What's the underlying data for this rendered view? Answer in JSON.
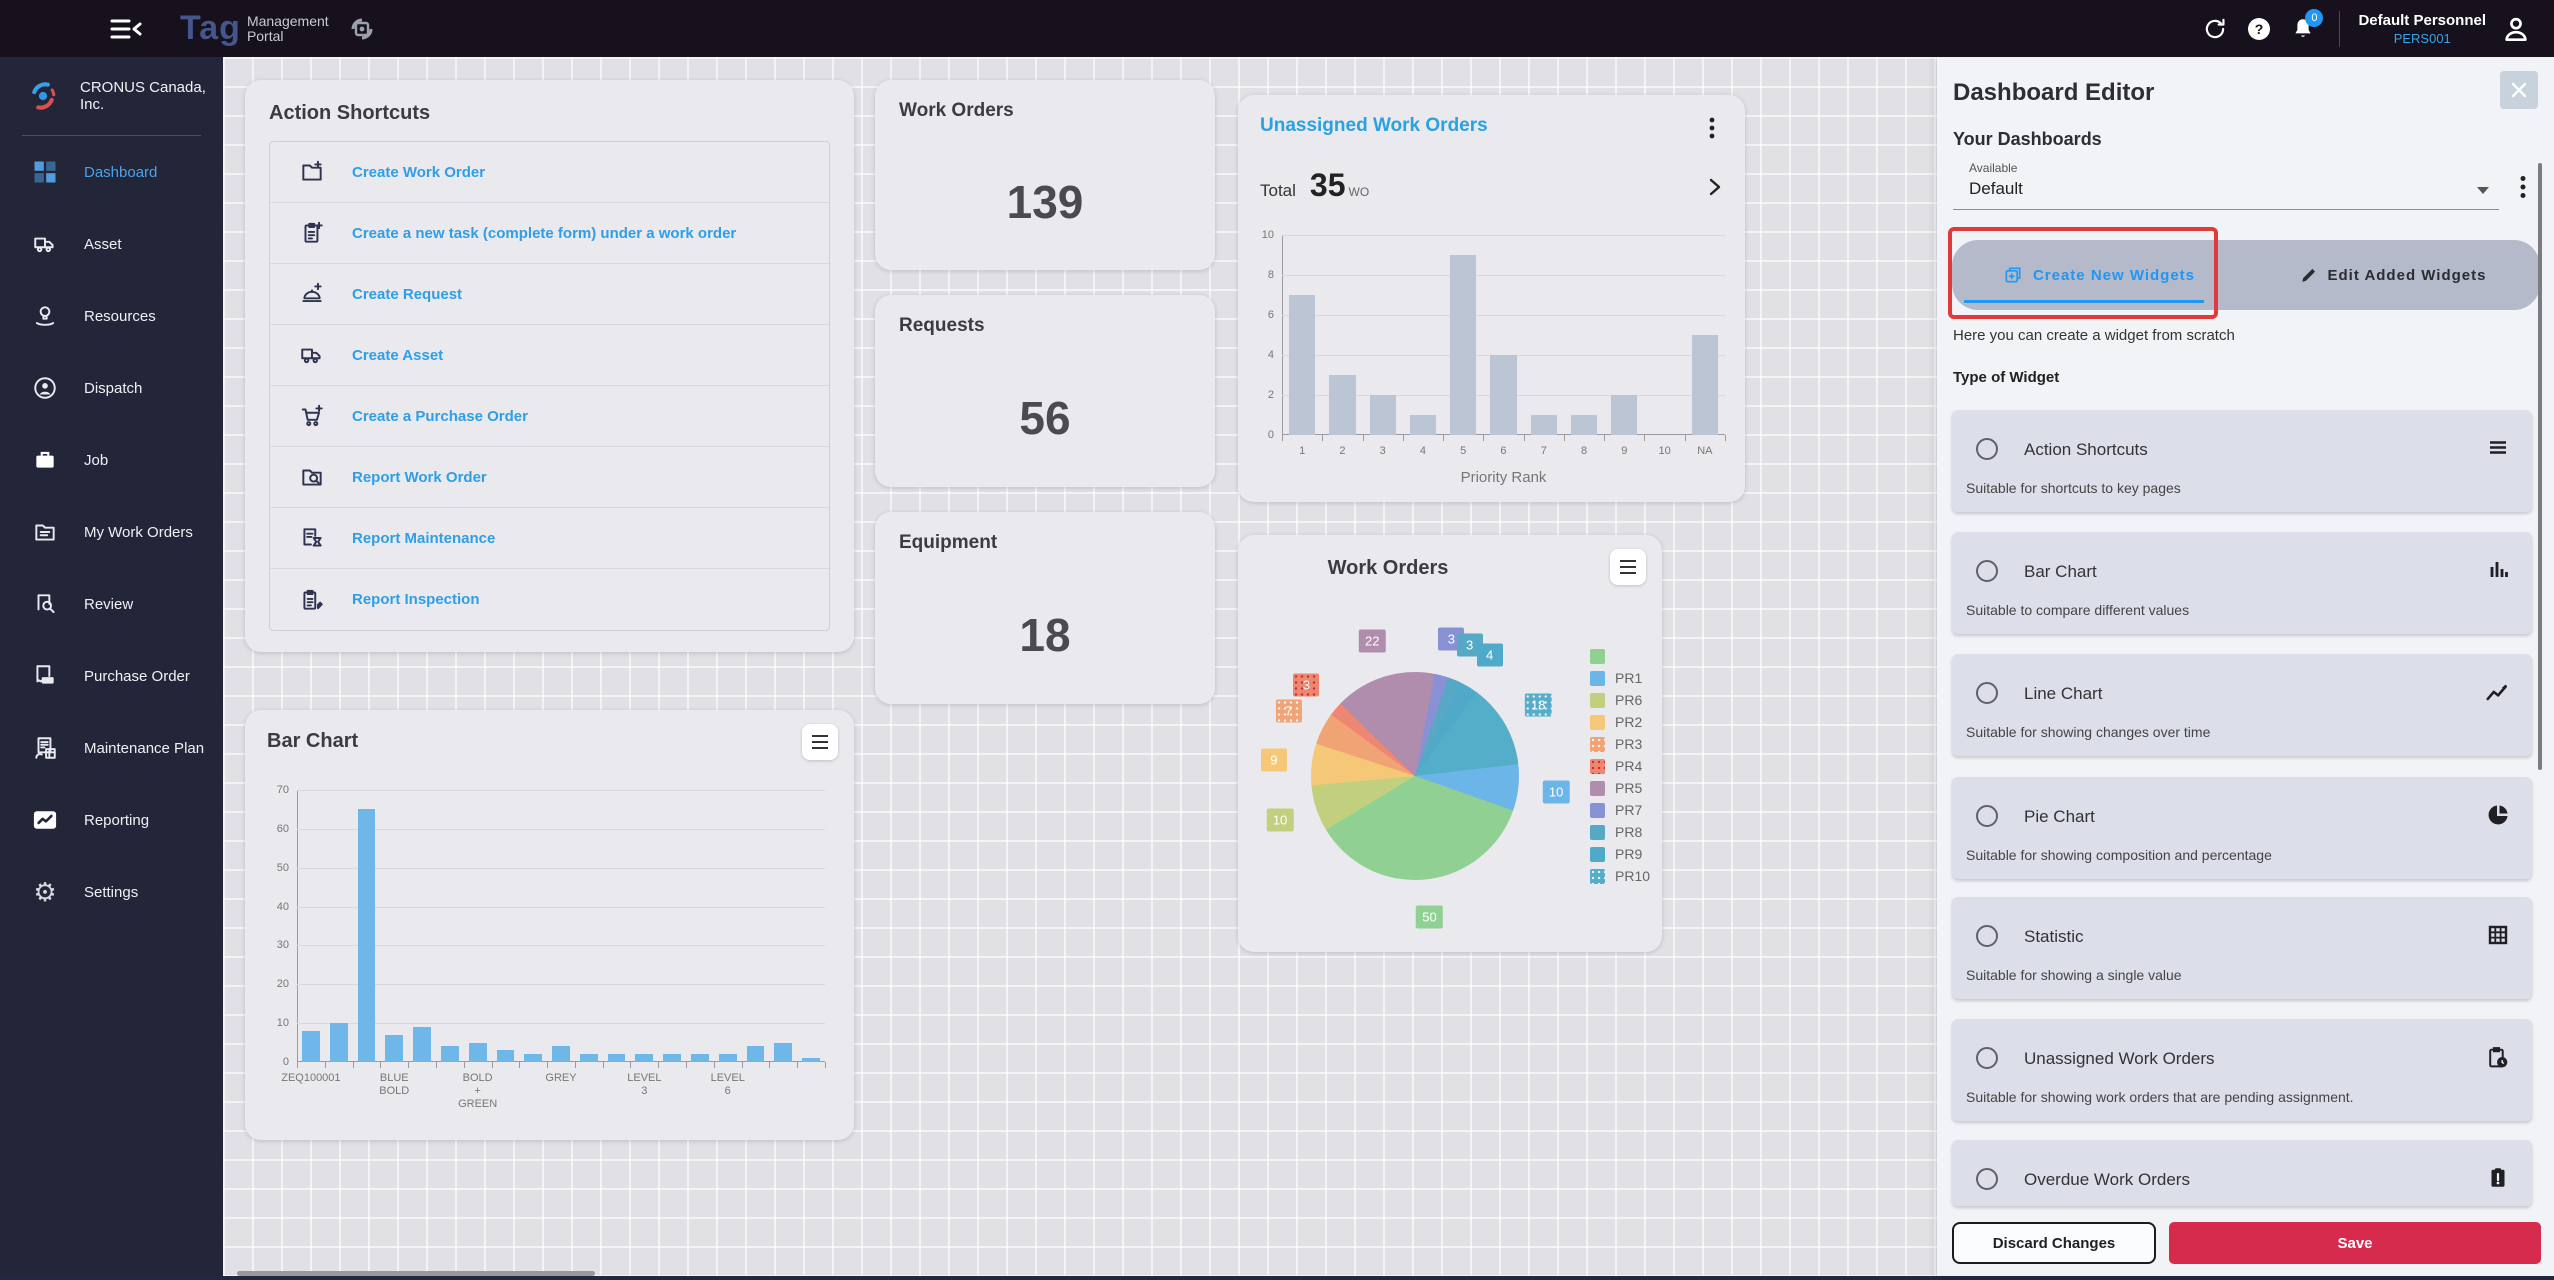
{
  "topbar": {
    "logo_primary": "Tag",
    "logo_secondary_line1": "Management",
    "logo_secondary_line2": "Portal",
    "notification_badge": "0",
    "user_name": "Default Personnel",
    "user_id": "PERS001"
  },
  "sidebar": {
    "company": "CRONUS Canada, Inc.",
    "items": [
      {
        "label": "Dashboard",
        "icon": "dashboard",
        "active": true
      },
      {
        "label": "Asset",
        "icon": "asset",
        "active": false
      },
      {
        "label": "Resources",
        "icon": "resources",
        "active": false
      },
      {
        "label": "Dispatch",
        "icon": "dispatch",
        "active": false
      },
      {
        "label": "Job",
        "icon": "job",
        "active": false
      },
      {
        "label": "My Work Orders",
        "icon": "my-work-orders",
        "active": false
      },
      {
        "label": "Review",
        "icon": "review",
        "active": false
      },
      {
        "label": "Purchase Order",
        "icon": "purchase-order",
        "active": false
      },
      {
        "label": "Maintenance Plan",
        "icon": "maintenance-plan",
        "active": false
      },
      {
        "label": "Reporting",
        "icon": "reporting",
        "active": false
      },
      {
        "label": "Settings",
        "icon": "settings",
        "active": false
      }
    ]
  },
  "action_shortcuts": {
    "title": "Action Shortcuts",
    "items": [
      {
        "label": "Create Work Order",
        "icon": "folder-plus"
      },
      {
        "label": "Create a new task (complete form) under a work order",
        "icon": "clipboard-plus"
      },
      {
        "label": "Create Request",
        "icon": "cloche-plus"
      },
      {
        "label": "Create Asset",
        "icon": "truck"
      },
      {
        "label": "Create a Purchase Order",
        "icon": "cart-plus"
      },
      {
        "label": "Report Work Order",
        "icon": "folder-search"
      },
      {
        "label": "Report Maintenance",
        "icon": "doc-hourglass"
      },
      {
        "label": "Report Inspection",
        "icon": "clipboard-pencil"
      }
    ]
  },
  "stats": [
    {
      "title": "Work Orders",
      "value": "139"
    },
    {
      "title": "Requests",
      "value": "56"
    },
    {
      "title": "Equipment",
      "value": "18"
    }
  ],
  "unassigned_widget": {
    "title": "Unassigned Work Orders",
    "total_label": "Total",
    "total_value": "35",
    "total_unit": "WO"
  },
  "pie_widget": {
    "title": "Work Orders"
  },
  "bar_widget": {
    "title": "Bar Chart"
  },
  "editor": {
    "title": "Dashboard Editor",
    "section_title": "Your Dashboards",
    "select_label": "Available",
    "select_value": "Default",
    "tabs": [
      {
        "label": "Create New Widgets",
        "icon": "widget-plus",
        "active": true
      },
      {
        "label": "Edit Added Widgets",
        "icon": "pencil",
        "active": false
      }
    ],
    "tab_hint": "Here you can create a widget from scratch",
    "list_title": "Type of Widget",
    "widget_types": [
      {
        "label": "Action Shortcuts",
        "description": "Suitable for shortcuts to key pages",
        "icon": "list"
      },
      {
        "label": "Bar Chart",
        "description": "Suitable to compare different values",
        "icon": "bar-chart"
      },
      {
        "label": "Line Chart",
        "description": "Suitable for showing changes over time",
        "icon": "line-chart"
      },
      {
        "label": "Pie Chart",
        "description": "Suitable for showing composition and percentage",
        "icon": "pie-chart"
      },
      {
        "label": "Statistic",
        "description": "Suitable for showing a single value",
        "icon": "table"
      },
      {
        "label": "Unassigned Work Orders",
        "description": "Suitable for showing work orders that are pending assignment.",
        "icon": "clipboard-clock"
      },
      {
        "label": "Overdue Work Orders",
        "description": "",
        "icon": "clipboard-alert"
      }
    ],
    "discard_label": "Discard Changes",
    "save_label": "Save"
  },
  "colors": {
    "accent_blue": "#29a2e1",
    "link_blue": "#2e9fe6",
    "save_red": "#d62b4c",
    "annotation_red": "#e03a3a",
    "bar_blue": "#6fb7e8",
    "mini_bar_gray": "#bcc5d4"
  },
  "chart_data": [
    {
      "id": "unassigned-priority-bar",
      "type": "bar",
      "title": "Unassigned Work Orders",
      "categories": [
        "1",
        "2",
        "3",
        "4",
        "5",
        "6",
        "7",
        "8",
        "9",
        "10",
        "NA"
      ],
      "values": [
        7,
        3,
        2,
        1,
        9,
        4,
        1,
        1,
        2,
        0,
        5
      ],
      "xlabel": "Priority Rank",
      "ylabel": "",
      "ylim": [
        0,
        10
      ],
      "yticks": [
        0,
        2,
        4,
        6,
        8,
        10
      ],
      "total": 35,
      "bar_color": "#bcc5d4",
      "grid": true
    },
    {
      "id": "work-orders-pie",
      "type": "pie",
      "title": "Work Orders",
      "start_angle": -46,
      "slices": [
        {
          "label": "PR5",
          "value": 22,
          "color": "#b08cad",
          "dotted": false
        },
        {
          "label": "PR7",
          "value": 3,
          "color": "#8891d4",
          "dotted": false
        },
        {
          "label": "PR8",
          "value": 3,
          "color": "#56a8c5",
          "dotted": false
        },
        {
          "label": "PR9",
          "value": 4,
          "color": "#4fa9c9",
          "dotted": false
        },
        {
          "label": "PR10",
          "value": 18,
          "color": "#54aec9",
          "dotted": true
        },
        {
          "label": "PR1",
          "value": 10,
          "color": "#6cb5e8",
          "dotted": false
        },
        {
          "label": "",
          "value": 50,
          "color": "#90d092",
          "dotted": false
        },
        {
          "label": "PR6",
          "value": 10,
          "color": "#c1cf7e",
          "dotted": false
        },
        {
          "label": "PR2",
          "value": 9,
          "color": "#f5c877",
          "dotted": false
        },
        {
          "label": "PR3",
          "value": 7,
          "color": "#f0a475",
          "dotted": true
        },
        {
          "label": "PR4",
          "value": 3,
          "color": "#ef8672",
          "dotted": true,
          "dot_style": "red"
        }
      ],
      "legend_order": [
        "",
        "PR1",
        "PR6",
        "PR2",
        "PR3",
        "PR4",
        "PR5",
        "PR7",
        "PR8",
        "PR9",
        "PR10"
      ],
      "legend_position": "right",
      "total": 139
    },
    {
      "id": "bottom-bar-chart",
      "type": "bar",
      "title": "Bar Chart",
      "values": [
        8,
        10,
        65,
        7,
        9,
        4,
        5,
        3,
        2,
        4,
        2,
        2,
        2,
        2,
        2,
        2,
        4,
        5,
        1
      ],
      "tick_labels": {
        "0": "ZEQ100001",
        "3": "BLUE\nBOLD",
        "6": "BOLD\n+\nGREEN",
        "9": "GREY",
        "12": "LEVEL\n3",
        "15": "LEVEL\n6"
      },
      "xlabel": "",
      "ylabel": "",
      "ylim": [
        0,
        70
      ],
      "yticks": [
        0,
        10,
        20,
        30,
        40,
        50,
        60,
        70
      ],
      "bar_color": "#6fb7e8",
      "grid": true
    }
  ]
}
